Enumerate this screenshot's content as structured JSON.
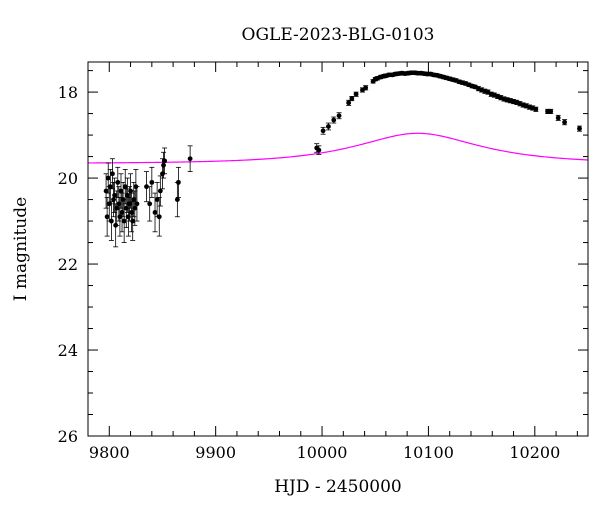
{
  "chart_data": {
    "type": "scatter",
    "title": "OGLE-2023-BLG-0103",
    "xlabel": "HJD - 2450000",
    "ylabel": "I magnitude",
    "xlim": [
      9780,
      10250
    ],
    "ylim": [
      26,
      17.3
    ],
    "y_inverted": true,
    "x_ticks": [
      9800,
      9900,
      10000,
      10100,
      10200
    ],
    "y_ticks": [
      18,
      20,
      22,
      24,
      26
    ],
    "x_tick_labels": [
      "9800",
      "9900",
      "10000",
      "10100",
      "10200"
    ],
    "y_tick_labels": [
      "18",
      "20",
      "22",
      "24",
      "26"
    ],
    "grid": false,
    "colors": {
      "points": "#000000",
      "model": "#ff00ff"
    },
    "series": [
      {
        "kind": "points_with_errorbars",
        "points": [
          {
            "x": 9797,
            "y": 20.3,
            "e": 0.4
          },
          {
            "x": 9798,
            "y": 20.9,
            "e": 0.45
          },
          {
            "x": 9799,
            "y": 20.0,
            "e": 0.35
          },
          {
            "x": 9800,
            "y": 20.6,
            "e": 0.4
          },
          {
            "x": 9801,
            "y": 20.2,
            "e": 0.4
          },
          {
            "x": 9802,
            "y": 21.0,
            "e": 0.45
          },
          {
            "x": 9803,
            "y": 19.9,
            "e": 0.35
          },
          {
            "x": 9804,
            "y": 20.5,
            "e": 0.4
          },
          {
            "x": 9805,
            "y": 20.4,
            "e": 0.4
          },
          {
            "x": 9806,
            "y": 21.1,
            "e": 0.5
          },
          {
            "x": 9807,
            "y": 20.7,
            "e": 0.4
          },
          {
            "x": 9808,
            "y": 20.1,
            "e": 0.35
          },
          {
            "x": 9809,
            "y": 20.6,
            "e": 0.4
          },
          {
            "x": 9810,
            "y": 20.9,
            "e": 0.45
          },
          {
            "x": 9811,
            "y": 20.3,
            "e": 0.4
          },
          {
            "x": 9812,
            "y": 20.8,
            "e": 0.45
          },
          {
            "x": 9813,
            "y": 20.5,
            "e": 0.4
          },
          {
            "x": 9814,
            "y": 21.0,
            "e": 0.5
          },
          {
            "x": 9815,
            "y": 20.2,
            "e": 0.4
          },
          {
            "x": 9816,
            "y": 20.7,
            "e": 0.45
          },
          {
            "x": 9817,
            "y": 20.4,
            "e": 0.4
          },
          {
            "x": 9818,
            "y": 20.9,
            "e": 0.45
          },
          {
            "x": 9819,
            "y": 20.6,
            "e": 0.4
          },
          {
            "x": 9820,
            "y": 20.3,
            "e": 0.4
          },
          {
            "x": 9821,
            "y": 20.8,
            "e": 0.45
          },
          {
            "x": 9822,
            "y": 21.0,
            "e": 0.45
          },
          {
            "x": 9823,
            "y": 20.5,
            "e": 0.4
          },
          {
            "x": 9824,
            "y": 20.7,
            "e": 0.4
          },
          {
            "x": 9825,
            "y": 20.2,
            "e": 0.4
          },
          {
            "x": 9826,
            "y": 20.6,
            "e": 0.4
          },
          {
            "x": 9835,
            "y": 20.2,
            "e": 0.35
          },
          {
            "x": 9838,
            "y": 20.6,
            "e": 0.4
          },
          {
            "x": 9840,
            "y": 20.1,
            "e": 0.35
          },
          {
            "x": 9843,
            "y": 20.8,
            "e": 0.45
          },
          {
            "x": 9845,
            "y": 20.5,
            "e": 0.4
          },
          {
            "x": 9847,
            "y": 20.9,
            "e": 0.45
          },
          {
            "x": 9848,
            "y": 20.3,
            "e": 0.35
          },
          {
            "x": 9850,
            "y": 19.9,
            "e": 0.35
          },
          {
            "x": 9851,
            "y": 19.7,
            "e": 0.3
          },
          {
            "x": 9852,
            "y": 19.6,
            "e": 0.3
          },
          {
            "x": 9864,
            "y": 20.5,
            "e": 0.4
          },
          {
            "x": 9865,
            "y": 20.1,
            "e": 0.35
          },
          {
            "x": 9876,
            "y": 19.55,
            "e": 0.3
          },
          {
            "x": 9995,
            "y": 19.3,
            "e": 0.1
          },
          {
            "x": 9997,
            "y": 19.35,
            "e": 0.1
          },
          {
            "x": 10001,
            "y": 18.9,
            "e": 0.08
          },
          {
            "x": 10006,
            "y": 18.8,
            "e": 0.08
          },
          {
            "x": 10011,
            "y": 18.65,
            "e": 0.07
          },
          {
            "x": 10016,
            "y": 18.55,
            "e": 0.07
          },
          {
            "x": 10025,
            "y": 18.25,
            "e": 0.06
          },
          {
            "x": 10028,
            "y": 18.15,
            "e": 0.05
          },
          {
            "x": 10032,
            "y": 18.05,
            "e": 0.05
          },
          {
            "x": 10038,
            "y": 17.95,
            "e": 0.05
          },
          {
            "x": 10041,
            "y": 17.9,
            "e": 0.05
          },
          {
            "x": 10048,
            "y": 17.75,
            "e": 0.04
          },
          {
            "x": 10050,
            "y": 17.7,
            "e": 0.04
          },
          {
            "x": 10052,
            "y": 17.68,
            "e": 0.04
          },
          {
            "x": 10055,
            "y": 17.65,
            "e": 0.04
          },
          {
            "x": 10058,
            "y": 17.63,
            "e": 0.04
          },
          {
            "x": 10060,
            "y": 17.62,
            "e": 0.04
          },
          {
            "x": 10063,
            "y": 17.6,
            "e": 0.04
          },
          {
            "x": 10066,
            "y": 17.6,
            "e": 0.04
          },
          {
            "x": 10069,
            "y": 17.58,
            "e": 0.04
          },
          {
            "x": 10072,
            "y": 17.57,
            "e": 0.04
          },
          {
            "x": 10075,
            "y": 17.56,
            "e": 0.04
          },
          {
            "x": 10078,
            "y": 17.57,
            "e": 0.04
          },
          {
            "x": 10081,
            "y": 17.56,
            "e": 0.04
          },
          {
            "x": 10084,
            "y": 17.55,
            "e": 0.04
          },
          {
            "x": 10087,
            "y": 17.55,
            "e": 0.04
          },
          {
            "x": 10090,
            "y": 17.56,
            "e": 0.04
          },
          {
            "x": 10093,
            "y": 17.56,
            "e": 0.04
          },
          {
            "x": 10096,
            "y": 17.57,
            "e": 0.04
          },
          {
            "x": 10099,
            "y": 17.58,
            "e": 0.04
          },
          {
            "x": 10102,
            "y": 17.58,
            "e": 0.04
          },
          {
            "x": 10105,
            "y": 17.6,
            "e": 0.04
          },
          {
            "x": 10108,
            "y": 17.61,
            "e": 0.04
          },
          {
            "x": 10111,
            "y": 17.63,
            "e": 0.04
          },
          {
            "x": 10114,
            "y": 17.65,
            "e": 0.04
          },
          {
            "x": 10117,
            "y": 17.67,
            "e": 0.04
          },
          {
            "x": 10120,
            "y": 17.69,
            "e": 0.04
          },
          {
            "x": 10123,
            "y": 17.71,
            "e": 0.04
          },
          {
            "x": 10126,
            "y": 17.73,
            "e": 0.04
          },
          {
            "x": 10129,
            "y": 17.76,
            "e": 0.04
          },
          {
            "x": 10132,
            "y": 17.78,
            "e": 0.04
          },
          {
            "x": 10135,
            "y": 17.8,
            "e": 0.04
          },
          {
            "x": 10138,
            "y": 17.83,
            "e": 0.04
          },
          {
            "x": 10141,
            "y": 17.86,
            "e": 0.04
          },
          {
            "x": 10144,
            "y": 17.88,
            "e": 0.04
          },
          {
            "x": 10147,
            "y": 17.92,
            "e": 0.05
          },
          {
            "x": 10150,
            "y": 17.95,
            "e": 0.05
          },
          {
            "x": 10153,
            "y": 17.98,
            "e": 0.05
          },
          {
            "x": 10156,
            "y": 18.0,
            "e": 0.05
          },
          {
            "x": 10159,
            "y": 18.05,
            "e": 0.05
          },
          {
            "x": 10162,
            "y": 18.07,
            "e": 0.05
          },
          {
            "x": 10165,
            "y": 18.1,
            "e": 0.05
          },
          {
            "x": 10168,
            "y": 18.13,
            "e": 0.05
          },
          {
            "x": 10171,
            "y": 18.16,
            "e": 0.05
          },
          {
            "x": 10174,
            "y": 18.18,
            "e": 0.05
          },
          {
            "x": 10177,
            "y": 18.2,
            "e": 0.05
          },
          {
            "x": 10180,
            "y": 18.22,
            "e": 0.05
          },
          {
            "x": 10183,
            "y": 18.24,
            "e": 0.05
          },
          {
            "x": 10186,
            "y": 18.27,
            "e": 0.05
          },
          {
            "x": 10189,
            "y": 18.3,
            "e": 0.05
          },
          {
            "x": 10192,
            "y": 18.32,
            "e": 0.05
          },
          {
            "x": 10195,
            "y": 18.35,
            "e": 0.05
          },
          {
            "x": 10198,
            "y": 18.37,
            "e": 0.05
          },
          {
            "x": 10201,
            "y": 18.4,
            "e": 0.05
          },
          {
            "x": 10212,
            "y": 18.45,
            "e": 0.05
          },
          {
            "x": 10215,
            "y": 18.45,
            "e": 0.05
          },
          {
            "x": 10222,
            "y": 18.6,
            "e": 0.06
          },
          {
            "x": 10228,
            "y": 18.7,
            "e": 0.06
          },
          {
            "x": 10242,
            "y": 18.85,
            "e": 0.06
          }
        ]
      },
      {
        "kind": "model_curve",
        "t0": 10090,
        "u0": 0.59,
        "tE": 92,
        "Is": 19.66,
        "fs": 1.0
      }
    ]
  }
}
